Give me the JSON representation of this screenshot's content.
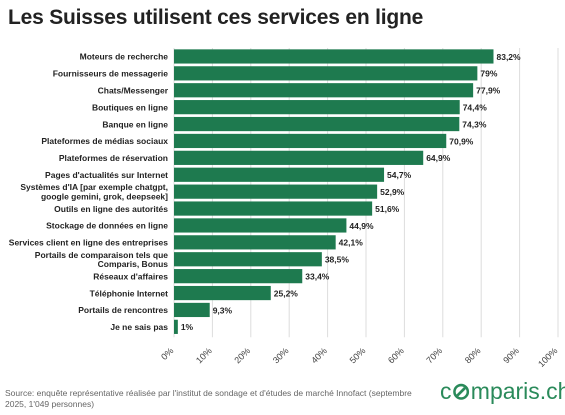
{
  "chart_data": {
    "type": "bar",
    "orientation": "horizontal",
    "title": "Les Suisses utilisent ces services en ligne",
    "categories": [
      "Moteurs de recherche",
      "Fournisseurs de messagerie",
      "Chats/Messenger",
      "Boutiques en ligne",
      "Banque en ligne",
      "Plateformes de médias sociaux",
      "Plateformes de réservation",
      "Pages d'actualités sur Internet",
      "Systèmes d'IA [par exemple chatgpt, google gemini, grok, deepseek]",
      "Outils en ligne des autorités",
      "Stockage de données en ligne",
      "Services client en ligne des entreprises",
      "Portails de comparaison tels que Comparis, Bonus",
      "Réseaux d'affaires",
      "Téléphonie Internet",
      "Portails de rencontres",
      "Je ne sais pas"
    ],
    "category_lines": [
      [
        "Moteurs de recherche"
      ],
      [
        "Fournisseurs de messagerie"
      ],
      [
        "Chats/Messenger"
      ],
      [
        "Boutiques en ligne"
      ],
      [
        "Banque en ligne"
      ],
      [
        "Plateformes de médias sociaux"
      ],
      [
        "Plateformes de réservation"
      ],
      [
        "Pages d'actualités sur Internet"
      ],
      [
        "Systèmes d'IA [par exemple chatgpt,",
        "google gemini, grok, deepseek]"
      ],
      [
        "Outils en ligne des autorités"
      ],
      [
        "Stockage de données en ligne"
      ],
      [
        "Services client en ligne des entreprises"
      ],
      [
        "Portails de comparaison tels que",
        "Comparis, Bonus"
      ],
      [
        "Réseaux d'affaires"
      ],
      [
        "Téléphonie Internet"
      ],
      [
        "Portails de rencontres"
      ],
      [
        "Je ne sais pas"
      ]
    ],
    "values": [
      83.2,
      79,
      77.9,
      74.4,
      74.3,
      70.9,
      64.9,
      54.7,
      52.9,
      51.6,
      44.9,
      42.1,
      38.5,
      33.4,
      25.2,
      9.3,
      1
    ],
    "value_labels": [
      "83,2%",
      "79%",
      "77,9%",
      "74,4%",
      "74,3%",
      "70,9%",
      "64,9%",
      "54,7%",
      "52,9%",
      "51,6%",
      "44,9%",
      "42,1%",
      "38,5%",
      "33,4%",
      "25,2%",
      "9,3%",
      "1%"
    ],
    "xlim": [
      0,
      100
    ],
    "xticks": [
      0,
      10,
      20,
      30,
      40,
      50,
      60,
      70,
      80,
      90,
      100
    ],
    "xtick_labels": [
      "0%",
      "10%",
      "20%",
      "30%",
      "40%",
      "50%",
      "60%",
      "70%",
      "80%",
      "90%",
      "100%"
    ],
    "xlabel": "",
    "ylabel": "",
    "grid": "vertical",
    "bar_color": "#1e7a4f",
    "grid_color": "#dddddd",
    "label_color": "#222222"
  },
  "footer": {
    "source": "Source: enquête représentative réalisée par l'institut de sondage et d'études de marché Innofact (septembre 2025, 1'049 personnes)",
    "logo_prefix": "c",
    "logo_mark": "⊘",
    "logo_suffix": "mparis.ch",
    "logo_color": "#2a8a5a"
  }
}
